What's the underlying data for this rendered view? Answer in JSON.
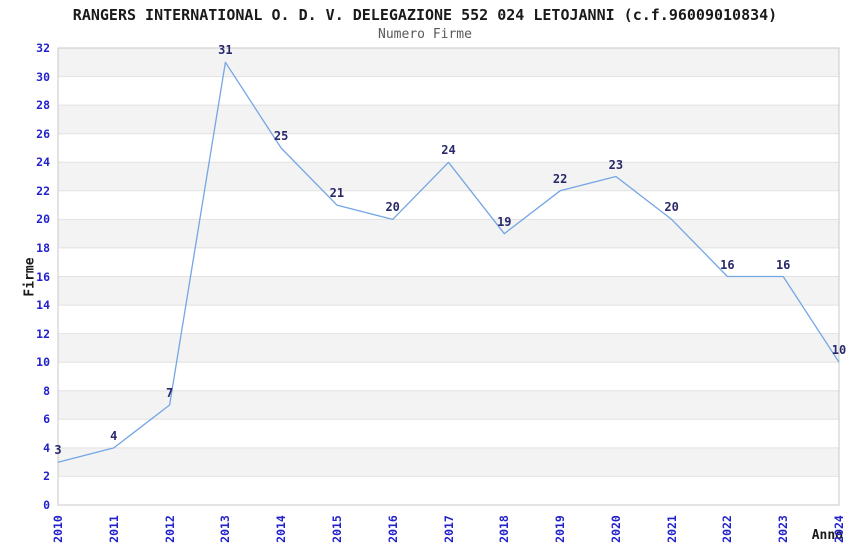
{
  "chart_data": {
    "type": "line",
    "title": "RANGERS INTERNATIONAL O. D. V. DELEGAZIONE 552 024 LETOJANNI (c.f.96009010834)",
    "subtitle": "Numero Firme",
    "xlabel": "Anno",
    "ylabel": "Firme",
    "categories": [
      "2010",
      "2011",
      "2012",
      "2013",
      "2014",
      "2015",
      "2016",
      "2017",
      "2018",
      "2019",
      "2020",
      "2021",
      "2022",
      "2023",
      "2024"
    ],
    "series": [
      {
        "name": "Numero Firme",
        "values": [
          3,
          4,
          7,
          31,
          25,
          21,
          20,
          24,
          19,
          22,
          23,
          20,
          16,
          16,
          10
        ]
      }
    ],
    "point_labels": [
      "3",
      "4",
      "7",
      "31",
      "25",
      "21",
      "20",
      "24",
      "19",
      "22",
      "23",
      "20",
      "16",
      "16",
      "10"
    ],
    "ylim": [
      0,
      32
    ],
    "ytick_step": 2,
    "grid": "horizontal-alternating-bands",
    "legend": "none",
    "colors": {
      "line": "#74a6e4",
      "tick_labels": "#2222cc",
      "value_labels": "#28286a",
      "band": "#f3f3f3",
      "gridline": "#e2e2e2",
      "plot_border": "#c9c9c9",
      "title": "#1a1a1a",
      "subtitle": "#595959",
      "axis_titles": "#1a1a1a",
      "background": "#ffffff"
    }
  }
}
